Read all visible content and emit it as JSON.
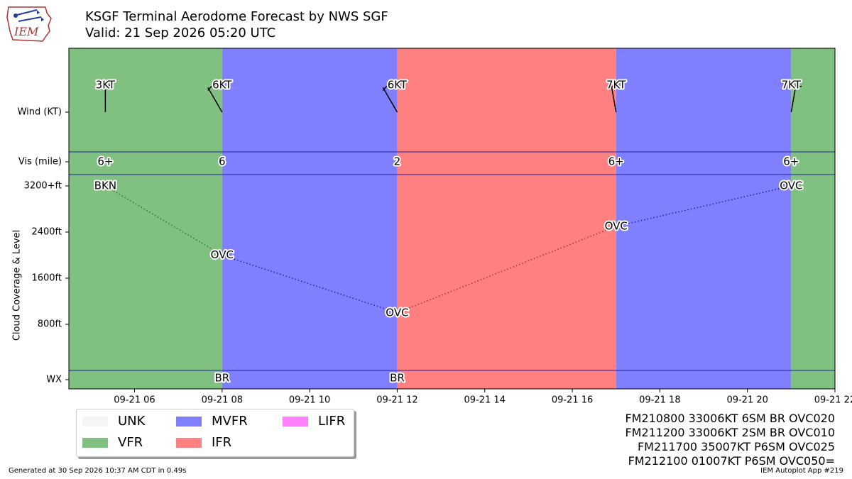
{
  "header": {
    "logo_text": "IEM",
    "title_line1": "KSGF Terminal Aerodome Forecast by NWS SGF",
    "title_line2": "Valid: 21 Sep 2026 05:20 UTC"
  },
  "chart_data": {
    "type": "timeline",
    "xlim": [
      "2026-09-21 04:30",
      "2026-09-21 22:00"
    ],
    "x_ticks": [
      "09-21 06",
      "09-21 08",
      "09-21 10",
      "09-21 12",
      "09-21 14",
      "09-21 16",
      "09-21 18",
      "09-21 20",
      "09-21 22"
    ],
    "row_labels": {
      "wind": "Wind (KT)",
      "vis": "Vis (mile)",
      "wx": "WX"
    },
    "ylabel": "Cloud Coverage & Level",
    "cloud_ticks": [
      {
        "value": 800,
        "label": "800ft"
      },
      {
        "value": 1600,
        "label": "1600ft"
      },
      {
        "value": 2400,
        "label": "2400ft"
      },
      {
        "value": 3200,
        "label": "3200+ft"
      }
    ],
    "cloud_ylim": [
      0,
      3200
    ],
    "categories_bands": [
      {
        "start": "2026-09-21 04:30",
        "end": "2026-09-21 08:00",
        "category": "VFR"
      },
      {
        "start": "2026-09-21 08:00",
        "end": "2026-09-21 12:00",
        "category": "MVFR"
      },
      {
        "start": "2026-09-21 12:00",
        "end": "2026-09-21 17:00",
        "category": "IFR"
      },
      {
        "start": "2026-09-21 17:00",
        "end": "2026-09-21 21:00",
        "category": "MVFR"
      },
      {
        "start": "2026-09-21 21:00",
        "end": "2026-09-21 22:00",
        "category": "VFR"
      }
    ],
    "forecasts": [
      {
        "time": "2026-09-21 05:20",
        "wind_label": "3KT",
        "wind_dir": 0,
        "vis": "6+",
        "cloud_label": "BKN",
        "cloud_ft": 3200,
        "wx": ""
      },
      {
        "time": "2026-09-21 08:00",
        "wind_label": "6KT",
        "wind_dir": 330,
        "vis": "6",
        "cloud_label": "OVC",
        "cloud_ft": 2000,
        "wx": "BR"
      },
      {
        "time": "2026-09-21 12:00",
        "wind_label": "6KT",
        "wind_dir": 330,
        "vis": "2",
        "cloud_label": "OVC",
        "cloud_ft": 1000,
        "wx": "BR"
      },
      {
        "time": "2026-09-21 17:00",
        "wind_label": "7KT",
        "wind_dir": 350,
        "vis": "6+",
        "cloud_label": "OVC",
        "cloud_ft": 2500,
        "wx": ""
      },
      {
        "time": "2026-09-21 21:00",
        "wind_label": "7KT",
        "wind_dir": 10,
        "vis": "6+",
        "cloud_label": "OVC",
        "cloud_ft": 3200,
        "wx": ""
      }
    ],
    "legend": [
      {
        "label": "UNK",
        "color": "#f5f5f5"
      },
      {
        "label": "VFR",
        "color": "#80c080"
      },
      {
        "label": "MVFR",
        "color": "#8080ff"
      },
      {
        "label": "IFR",
        "color": "#ff8080"
      },
      {
        "label": "LIFR",
        "color": "#ff80ff"
      }
    ],
    "category_colors": {
      "UNK": "#f5f5f5",
      "VFR": "#80c080",
      "MVFR": "#8080ff",
      "IFR": "#ff8080",
      "LIFR": "#ff80ff"
    },
    "legend_placement": "bottom-left"
  },
  "taf_text": [
    "FM210800 33006KT 6SM BR OVC020",
    "FM211200 33006KT 2SM BR OVC010",
    "FM211700 35007KT P6SM OVC025",
    "FM212100 01007KT P6SM OVC050="
  ],
  "footer": {
    "generated": "Generated at 30 Sep 2026 10:37 AM CDT in 0.49s",
    "app": "IEM Autoplot App #219"
  }
}
